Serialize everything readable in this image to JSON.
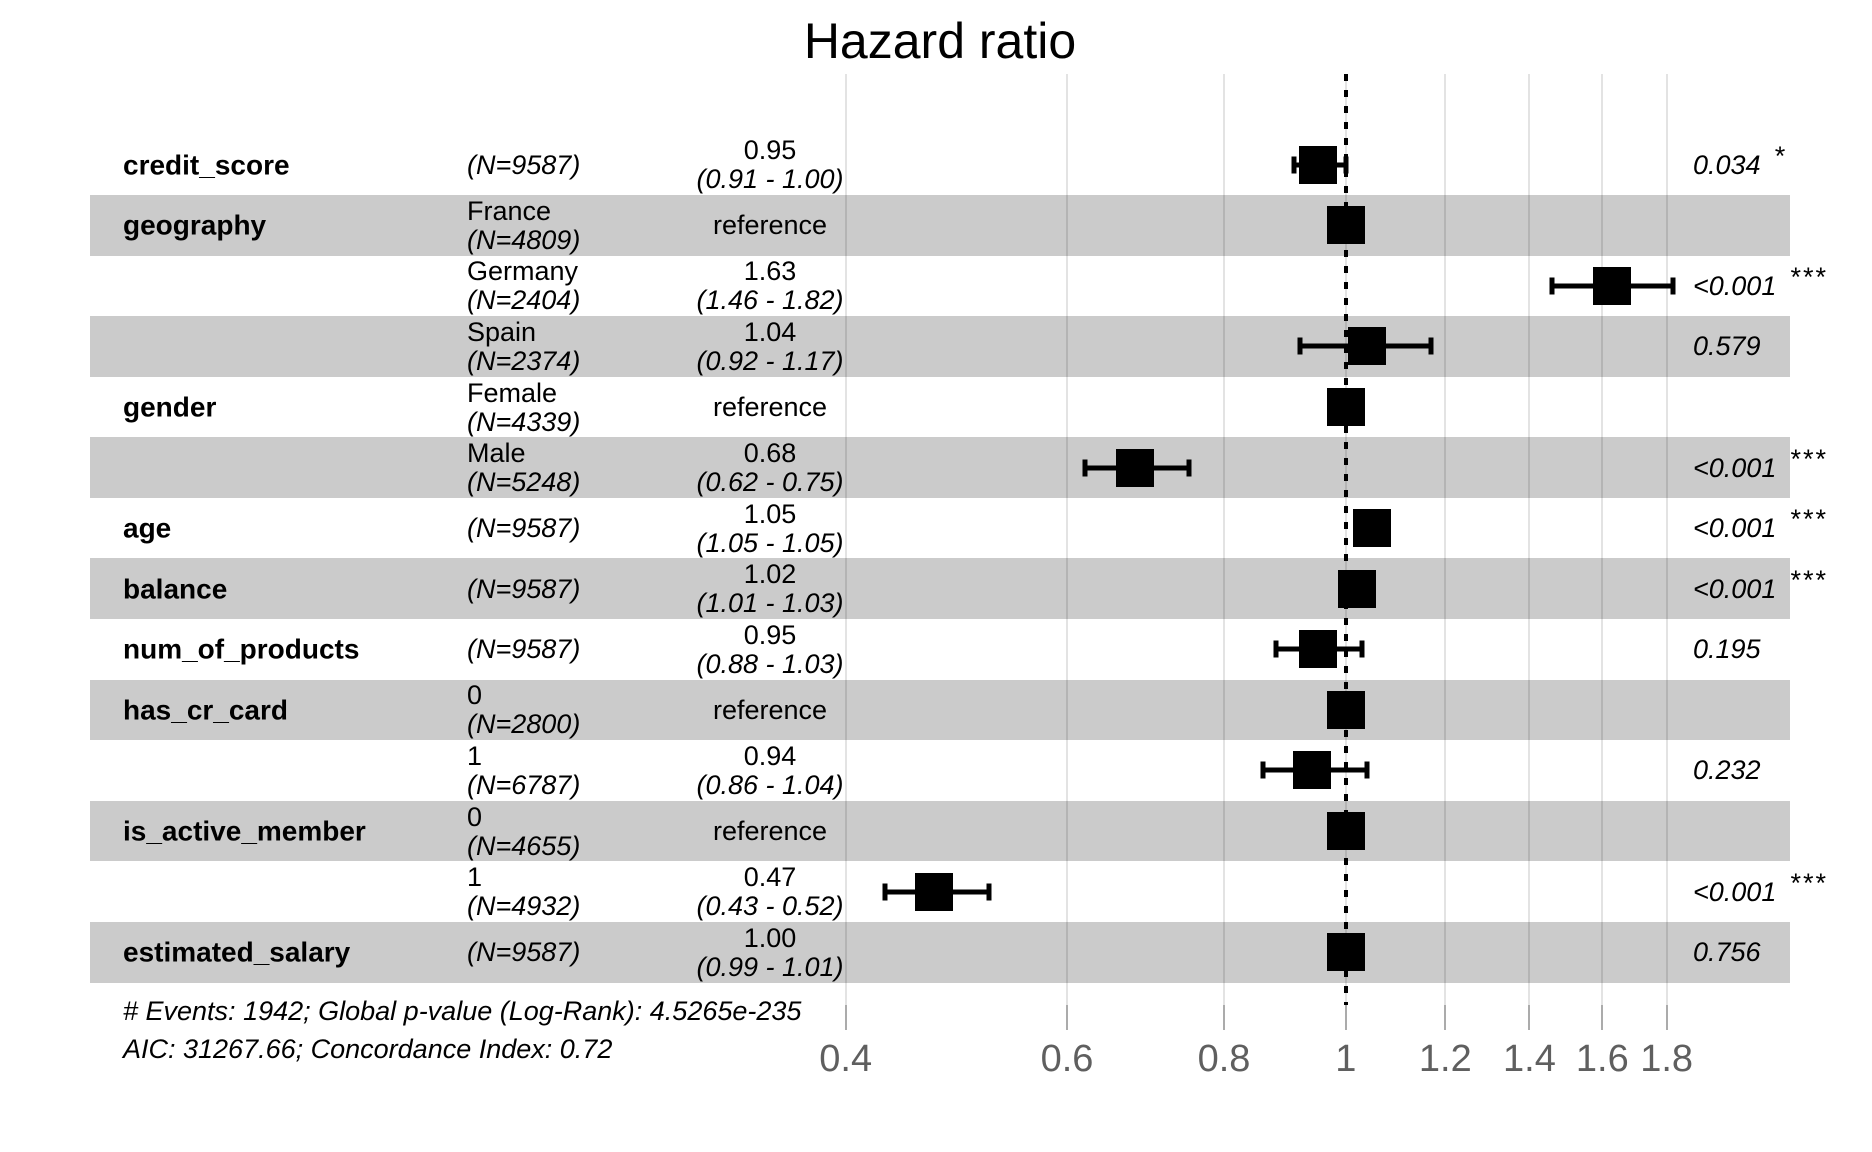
{
  "title": "Hazard ratio",
  "colors": {
    "background": "#ffffff",
    "stripe": "#cbcbcb",
    "gridline": "rgba(0,0,0,0.11)",
    "tick": "#ababab",
    "axis_text": "#5f5f5f",
    "marker": "#000000",
    "text": "#000000"
  },
  "chart_data": {
    "type": "forest",
    "title": "Hazard ratio",
    "x_scale": "log",
    "x_ticks": [
      0.4,
      0.6,
      0.8,
      1,
      1.2,
      1.4,
      1.6,
      1.8
    ],
    "x_range": [
      0.1,
      2.26
    ],
    "reference_line": 1,
    "grid": "vertical-on",
    "rows": [
      {
        "variable": "credit_score",
        "level": "",
        "n": "(N=9587)",
        "reference": false,
        "estimate": 0.95,
        "ci_low": 0.91,
        "ci_high": 1.0,
        "estimate_label": "0.95",
        "ci_label": "(0.91 - 1.00)",
        "p": "0.034",
        "stars": "*",
        "striped": false
      },
      {
        "variable": "geography",
        "level": "France",
        "n": "(N=4809)",
        "reference": true,
        "estimate_label": "reference",
        "p": "",
        "stars": "",
        "striped": true
      },
      {
        "variable": "",
        "level": "Germany",
        "n": "(N=2404)",
        "reference": false,
        "estimate": 1.63,
        "ci_low": 1.46,
        "ci_high": 1.82,
        "estimate_label": "1.63",
        "ci_label": "(1.46 - 1.82)",
        "p": "<0.001",
        "stars": "***",
        "striped": false
      },
      {
        "variable": "",
        "level": "Spain",
        "n": "(N=2374)",
        "reference": false,
        "estimate": 1.04,
        "ci_low": 0.92,
        "ci_high": 1.17,
        "estimate_label": "1.04",
        "ci_label": "(0.92 - 1.17)",
        "p": "0.579",
        "stars": "",
        "striped": true
      },
      {
        "variable": "gender",
        "level": "Female",
        "n": "(N=4339)",
        "reference": true,
        "estimate_label": "reference",
        "p": "",
        "stars": "",
        "striped": false
      },
      {
        "variable": "",
        "level": "Male",
        "n": "(N=5248)",
        "reference": false,
        "estimate": 0.68,
        "ci_low": 0.62,
        "ci_high": 0.75,
        "estimate_label": "0.68",
        "ci_label": "(0.62 - 0.75)",
        "p": "<0.001",
        "stars": "***",
        "striped": true
      },
      {
        "variable": "age",
        "level": "",
        "n": "(N=9587)",
        "reference": false,
        "estimate": 1.05,
        "ci_low": 1.05,
        "ci_high": 1.05,
        "estimate_label": "1.05",
        "ci_label": "(1.05 - 1.05)",
        "p": "<0.001",
        "stars": "***",
        "striped": false
      },
      {
        "variable": "balance",
        "level": "",
        "n": "(N=9587)",
        "reference": false,
        "estimate": 1.02,
        "ci_low": 1.01,
        "ci_high": 1.03,
        "estimate_label": "1.02",
        "ci_label": "(1.01 - 1.03)",
        "p": "<0.001",
        "stars": "***",
        "striped": true
      },
      {
        "variable": "num_of_products",
        "level": "",
        "n": "(N=9587)",
        "reference": false,
        "estimate": 0.95,
        "ci_low": 0.88,
        "ci_high": 1.03,
        "estimate_label": "0.95",
        "ci_label": "(0.88 - 1.03)",
        "p": "0.195",
        "stars": "",
        "striped": false
      },
      {
        "variable": "has_cr_card",
        "level": "0",
        "n": "(N=2800)",
        "reference": true,
        "estimate_label": "reference",
        "p": "",
        "stars": "",
        "striped": true
      },
      {
        "variable": "",
        "level": "1",
        "n": "(N=6787)",
        "reference": false,
        "estimate": 0.94,
        "ci_low": 0.86,
        "ci_high": 1.04,
        "estimate_label": "0.94",
        "ci_label": "(0.86 - 1.04)",
        "p": "0.232",
        "stars": "",
        "striped": false
      },
      {
        "variable": "is_active_member",
        "level": "0",
        "n": "(N=4655)",
        "reference": true,
        "estimate_label": "reference",
        "p": "",
        "stars": "",
        "striped": true
      },
      {
        "variable": "",
        "level": "1",
        "n": "(N=4932)",
        "reference": false,
        "estimate": 0.47,
        "ci_low": 0.43,
        "ci_high": 0.52,
        "estimate_label": "0.47",
        "ci_label": "(0.43 - 0.52)",
        "p": "<0.001",
        "stars": "***",
        "striped": false
      },
      {
        "variable": "estimated_salary",
        "level": "",
        "n": "(N=9587)",
        "reference": false,
        "estimate": 1.0,
        "ci_low": 0.99,
        "ci_high": 1.01,
        "estimate_label": "1.00",
        "ci_label": "(0.99 - 1.01)",
        "p": "0.756",
        "stars": "",
        "striped": true
      }
    ],
    "footnotes": [
      "# Events: 1942; Global p-value (Log-Rank): 4.5265e-235",
      "AIC: 31267.66; Concordance Index: 0.72"
    ]
  }
}
